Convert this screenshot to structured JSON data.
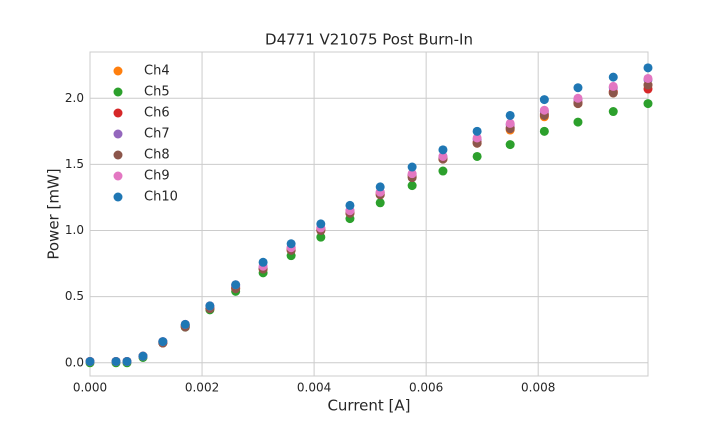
{
  "chart_data": {
    "type": "scatter",
    "title": "D4771 V21075 Post Burn-In",
    "xlabel": "Current [A]",
    "ylabel": "Power [mW]",
    "x": [
      0,
      0.000464,
      0.00066,
      0.000946,
      0.0013,
      0.0017,
      0.00214,
      0.0026,
      0.00309,
      0.00359,
      0.00412,
      0.00464,
      0.00518,
      0.00575,
      0.0063,
      0.00691,
      0.0075,
      0.00811,
      0.00871,
      0.00934,
      0.00996
    ],
    "series": [
      {
        "name": "Ch4",
        "color": "#ff7f0e",
        "values": [
          0.01,
          0.01,
          0.01,
          0.05,
          0.15,
          0.28,
          0.41,
          0.56,
          0.71,
          0.85,
          1.0,
          1.13,
          1.27,
          1.41,
          1.54,
          1.66,
          1.76,
          1.86,
          1.96,
          2.04,
          2.1
        ]
      },
      {
        "name": "Ch5",
        "color": "#2ca02c",
        "values": [
          0,
          0,
          0,
          0.04,
          0.15,
          0.27,
          0.4,
          0.54,
          0.68,
          0.81,
          0.95,
          1.09,
          1.21,
          1.34,
          1.45,
          1.56,
          1.65,
          1.75,
          1.82,
          1.9,
          1.96
        ]
      },
      {
        "name": "Ch6",
        "color": "#d62728",
        "values": [
          0.01,
          0.01,
          0.01,
          0.05,
          0.15,
          0.28,
          0.41,
          0.57,
          0.71,
          0.86,
          1.01,
          1.14,
          1.28,
          1.42,
          1.55,
          1.67,
          1.78,
          1.88,
          1.97,
          2.05,
          2.07
        ]
      },
      {
        "name": "Ch7",
        "color": "#9467bd",
        "values": [
          0.01,
          0.01,
          0.01,
          0.05,
          0.16,
          0.29,
          0.43,
          0.58,
          0.72,
          0.87,
          1.02,
          1.15,
          1.29,
          1.42,
          1.56,
          1.69,
          1.8,
          1.9,
          1.99,
          2.08,
          2.14
        ]
      },
      {
        "name": "Ch8",
        "color": "#8c564b",
        "values": [
          0.01,
          0.01,
          0.01,
          0.05,
          0.15,
          0.27,
          0.41,
          0.56,
          0.71,
          0.85,
          1.0,
          1.13,
          1.27,
          1.4,
          1.54,
          1.66,
          1.77,
          1.87,
          1.96,
          2.04,
          2.1
        ]
      },
      {
        "name": "Ch9",
        "color": "#e377c2",
        "values": [
          0.01,
          0.01,
          0.01,
          0.05,
          0.16,
          0.29,
          0.43,
          0.59,
          0.73,
          0.87,
          1.02,
          1.15,
          1.29,
          1.43,
          1.56,
          1.7,
          1.81,
          1.91,
          2.0,
          2.09,
          2.15
        ]
      },
      {
        "name": "Ch10",
        "color": "#1f77b4",
        "values": [
          0.01,
          0.01,
          0.01,
          0.05,
          0.16,
          0.29,
          0.43,
          0.59,
          0.76,
          0.9,
          1.05,
          1.19,
          1.33,
          1.48,
          1.61,
          1.75,
          1.87,
          1.99,
          2.08,
          2.16,
          2.23
        ]
      }
    ],
    "xlim": [
      0,
      0.00996
    ],
    "ylim": [
      -0.1,
      2.35
    ],
    "xticks": [
      {
        "value": 0,
        "label": "0.000"
      },
      {
        "value": 0.002,
        "label": "0.002"
      },
      {
        "value": 0.004,
        "label": "0.004"
      },
      {
        "value": 0.006,
        "label": "0.006"
      },
      {
        "value": 0.008,
        "label": "0.008"
      }
    ],
    "yticks": [
      {
        "value": 0,
        "label": "0.0"
      },
      {
        "value": 0.5,
        "label": "0.5"
      },
      {
        "value": 1,
        "label": "1.0"
      },
      {
        "value": 1.5,
        "label": "1.5"
      },
      {
        "value": 2,
        "label": "2.0"
      }
    ],
    "grid": true,
    "legend": "upper left"
  }
}
